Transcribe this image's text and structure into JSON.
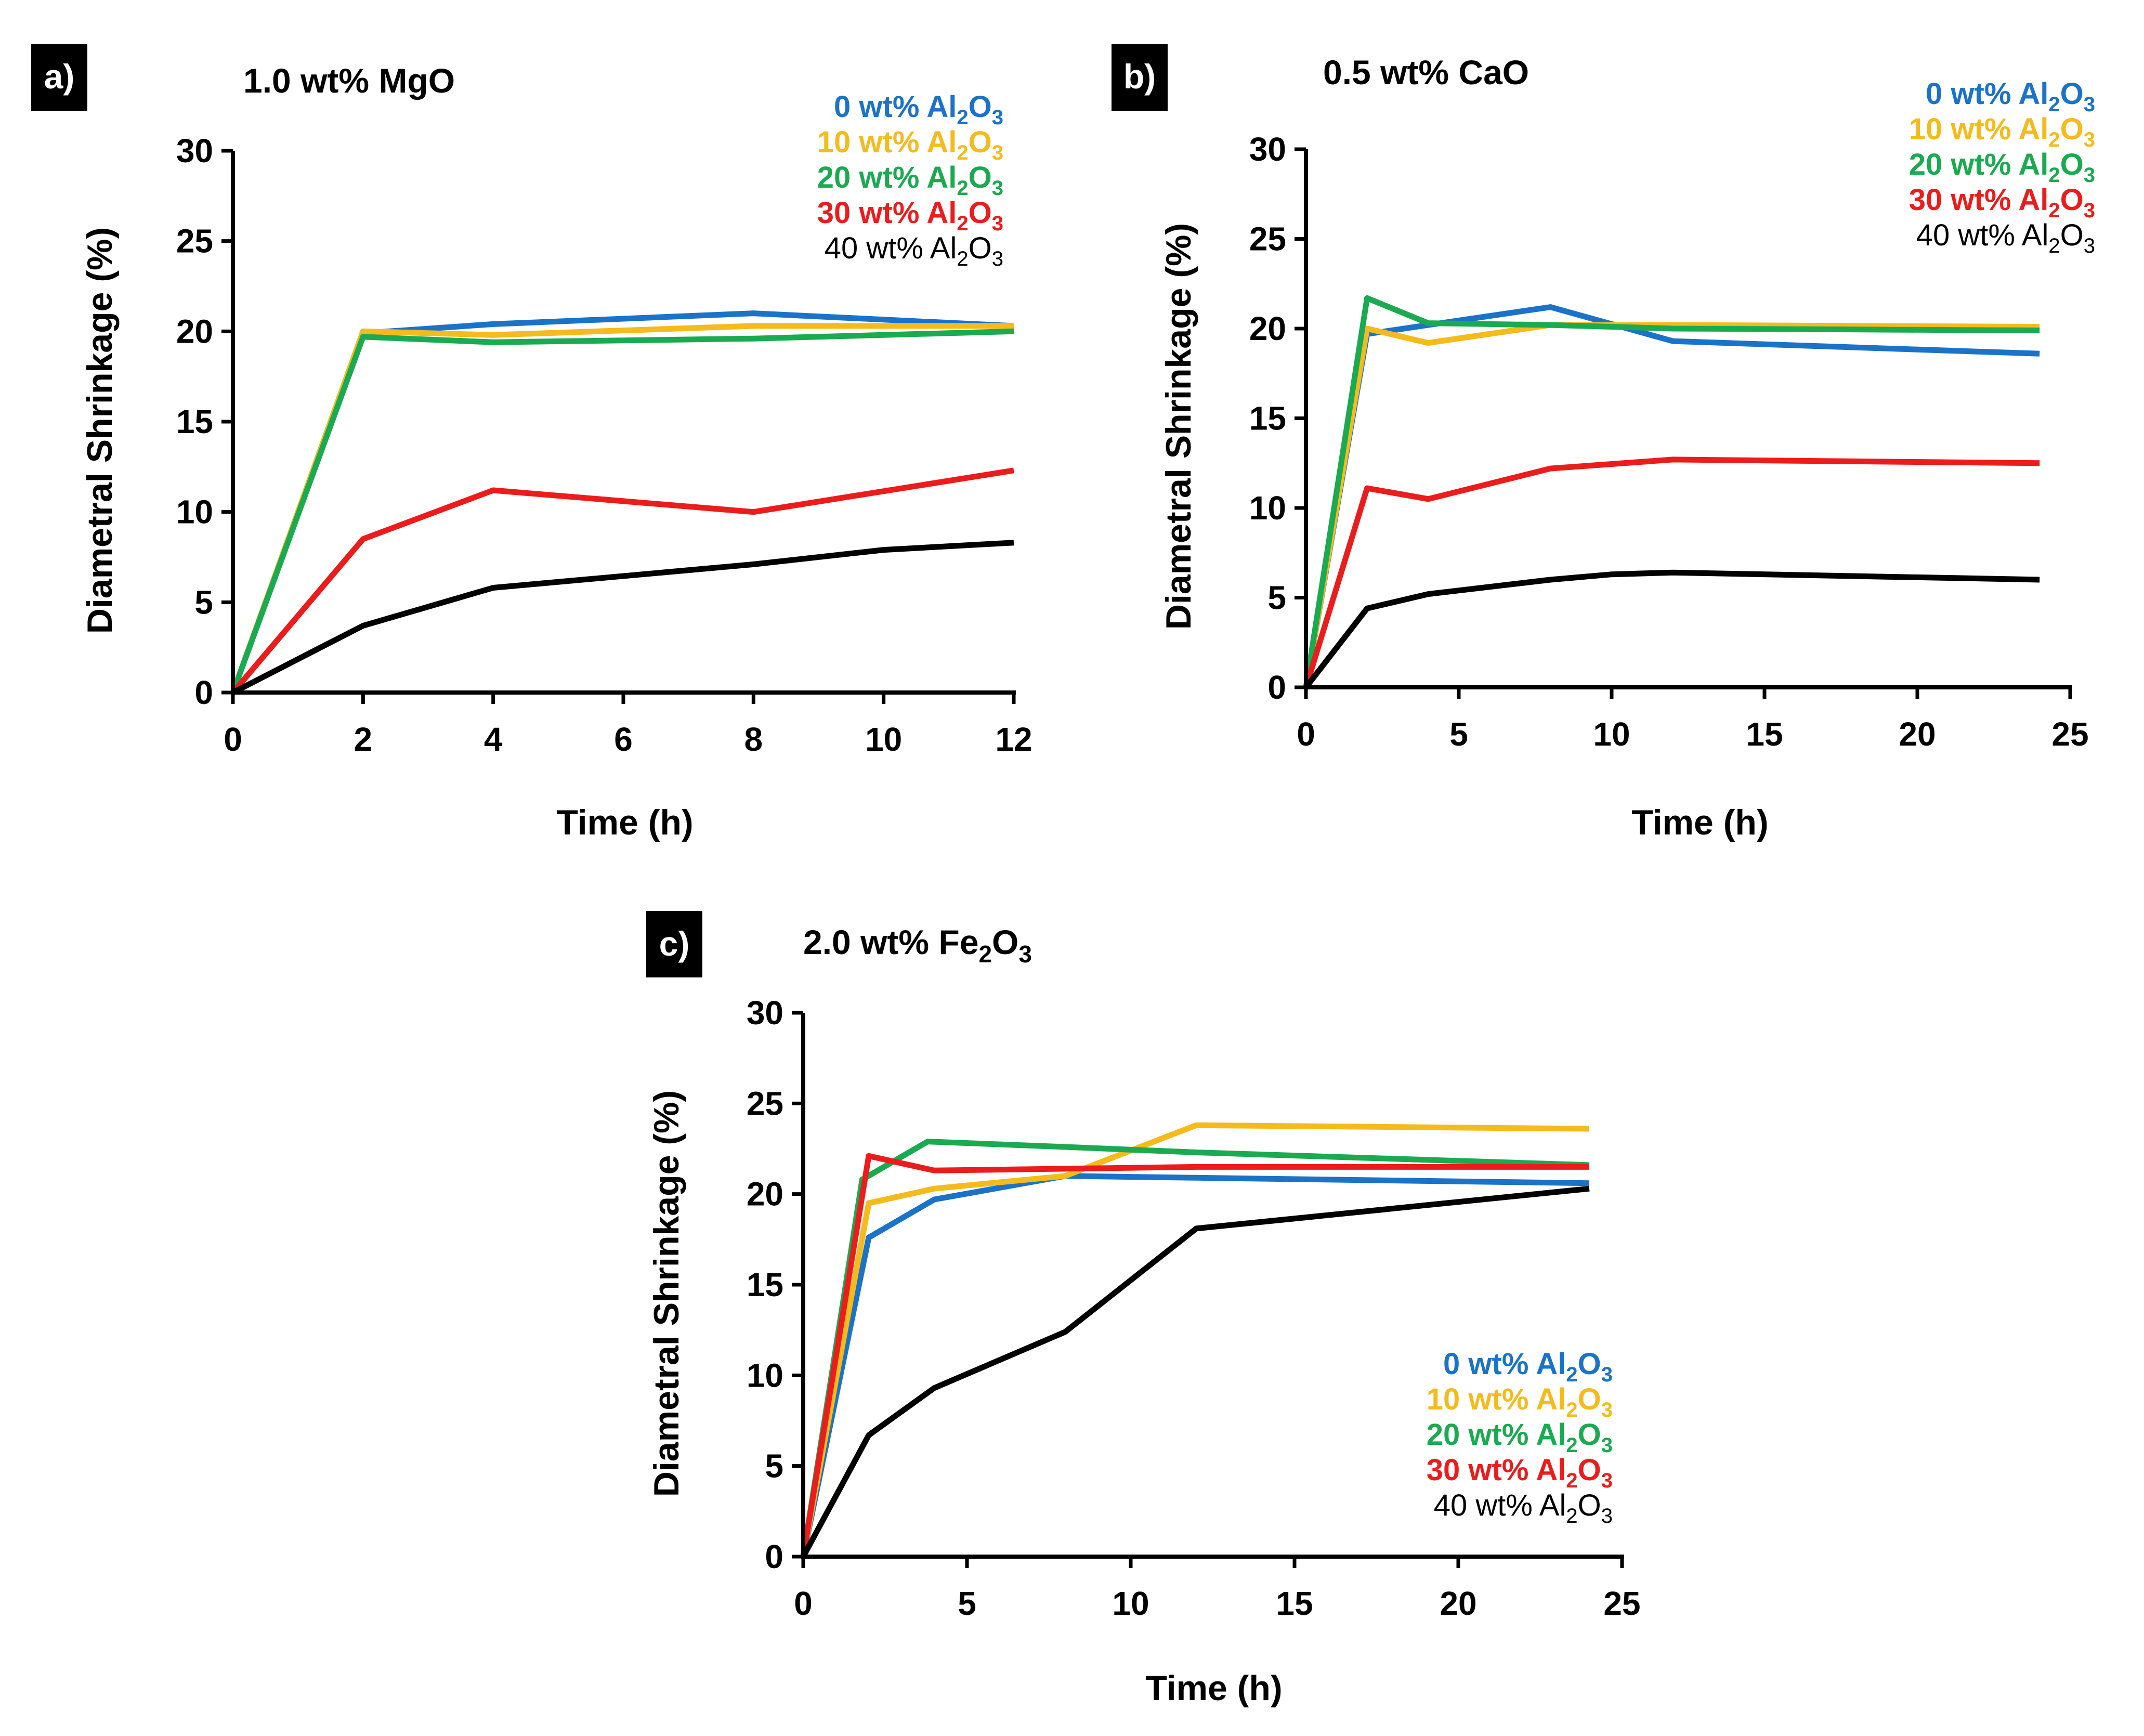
{
  "colors": {
    "s0": "#1a73c8",
    "s10": "#f5bb1d",
    "s20": "#1aaa50",
    "s30": "#ec1c1c",
    "s40": "#000000",
    "badge_bg": "#000000",
    "badge_text": "#ffffff",
    "axis": "#000000"
  },
  "chart_data": [
    {
      "panel_label": "a)",
      "title": "1.0 wt% MgO",
      "type": "line",
      "xlabel": "Time (h)",
      "ylabel": "Diametral Shrinkage (%)",
      "xlim": [
        0,
        12
      ],
      "ylim": [
        0,
        30
      ],
      "xticks": [
        0,
        2,
        4,
        6,
        8,
        10,
        12
      ],
      "yticks": [
        0,
        5,
        10,
        15,
        20,
        25,
        30
      ],
      "legend_position": "top-right",
      "series": [
        {
          "name": "0 wt% Al2O3",
          "legend_prefix": "0 wt% Al",
          "color_key": "s0",
          "x": [
            0,
            2,
            4,
            8,
            12
          ],
          "y": [
            0,
            19.9,
            20.4,
            21.0,
            20.3
          ]
        },
        {
          "name": "10 wt% Al2O3",
          "legend_prefix": "10 wt% Al",
          "color_key": "s10",
          "x": [
            0,
            2,
            4,
            8,
            12
          ],
          "y": [
            0,
            20.0,
            19.8,
            20.3,
            20.3
          ]
        },
        {
          "name": "20 wt% Al2O3",
          "legend_prefix": "20 wt% Al",
          "color_key": "s20",
          "x": [
            0,
            2,
            4,
            8,
            12
          ],
          "y": [
            0,
            19.7,
            19.4,
            19.6,
            20.0
          ]
        },
        {
          "name": "30 wt% Al2O3",
          "legend_prefix": "30 wt% Al",
          "color_key": "s30",
          "x": [
            0,
            2,
            4,
            8,
            12
          ],
          "y": [
            0,
            8.5,
            11.2,
            10.0,
            12.3
          ]
        },
        {
          "name": "40 wt% Al2O3",
          "legend_prefix": "40 wt% Al",
          "color_key": "s40",
          "x": [
            0,
            2,
            4,
            8,
            10,
            12
          ],
          "y": [
            0,
            3.7,
            5.8,
            7.1,
            7.9,
            8.3
          ]
        }
      ]
    },
    {
      "panel_label": "b)",
      "title": "0.5 wt% CaO",
      "type": "line",
      "xlabel": "Time (h)",
      "ylabel": "Diametral Shrinkage (%)",
      "xlim": [
        0,
        25
      ],
      "ylim": [
        0,
        30
      ],
      "xticks": [
        0,
        5,
        10,
        15,
        20,
        25
      ],
      "yticks": [
        0,
        5,
        10,
        15,
        20,
        25,
        30
      ],
      "legend_position": "top-right",
      "series": [
        {
          "name": "0 wt% Al2O3",
          "legend_prefix": "0 wt% Al",
          "color_key": "s0",
          "x": [
            0,
            2,
            4,
            8,
            12,
            24
          ],
          "y": [
            0,
            19.7,
            20.2,
            21.2,
            19.3,
            18.6
          ]
        },
        {
          "name": "10 wt% Al2O3",
          "legend_prefix": "10 wt% Al",
          "color_key": "s10",
          "x": [
            0,
            2,
            4,
            8,
            12,
            24
          ],
          "y": [
            0,
            20.0,
            19.2,
            20.2,
            20.2,
            20.1
          ]
        },
        {
          "name": "20 wt% Al2O3",
          "legend_prefix": "20 wt% Al",
          "color_key": "s20",
          "x": [
            0,
            2,
            4,
            8,
            12,
            24
          ],
          "y": [
            0,
            21.7,
            20.3,
            20.2,
            20.0,
            19.9
          ]
        },
        {
          "name": "30 wt% Al2O3",
          "legend_prefix": "30 wt% Al",
          "color_key": "s30",
          "x": [
            0,
            2,
            4,
            8,
            12,
            24
          ],
          "y": [
            0,
            11.1,
            10.5,
            12.2,
            12.7,
            12.5
          ]
        },
        {
          "name": "40 wt% Al2O3",
          "legend_prefix": "40 wt% Al",
          "color_key": "s40",
          "x": [
            0,
            2,
            4,
            8,
            10,
            12,
            24
          ],
          "y": [
            0,
            4.4,
            5.2,
            6.0,
            6.3,
            6.4,
            6.0
          ]
        }
      ]
    },
    {
      "panel_label": "c)",
      "title": "2.0 wt% Fe2O3",
      "title_prefix": "2.0 wt% Fe",
      "type": "line",
      "xlabel": "Time (h)",
      "ylabel": "Diametral Shrinkage (%)",
      "xlim": [
        0,
        25
      ],
      "ylim": [
        0,
        30
      ],
      "xticks": [
        0,
        5,
        10,
        15,
        20,
        25
      ],
      "yticks": [
        0,
        5,
        10,
        15,
        20,
        25,
        30
      ],
      "legend_position": "bottom-right",
      "series": [
        {
          "name": "0 wt% Al2O3",
          "legend_prefix": "0 wt% Al",
          "color_key": "s0",
          "x": [
            0,
            2,
            4,
            8,
            12,
            24
          ],
          "y": [
            0,
            17.6,
            19.7,
            21.0,
            20.9,
            20.6
          ]
        },
        {
          "name": "10 wt% Al2O3",
          "legend_prefix": "10 wt% Al",
          "color_key": "s10",
          "x": [
            0,
            2,
            4,
            8,
            12,
            24
          ],
          "y": [
            0,
            19.5,
            20.3,
            21.0,
            23.8,
            23.6
          ]
        },
        {
          "name": "20 wt% Al2O3",
          "legend_prefix": "20 wt% Al",
          "color_key": "s20",
          "x": [
            0,
            1.8,
            3.8,
            8,
            12,
            24
          ],
          "y": [
            0,
            20.8,
            22.9,
            22.6,
            22.3,
            21.6
          ]
        },
        {
          "name": "30 wt% Al2O3",
          "legend_prefix": "30 wt% Al",
          "color_key": "s30",
          "x": [
            0,
            2,
            4,
            8,
            12,
            24
          ],
          "y": [
            0,
            22.1,
            21.3,
            21.4,
            21.5,
            21.5
          ]
        },
        {
          "name": "40 wt% Al2O3",
          "legend_prefix": "40 wt% Al",
          "color_key": "s40",
          "x": [
            0,
            2,
            4,
            8,
            12,
            24
          ],
          "y": [
            0,
            6.7,
            9.3,
            12.4,
            18.1,
            20.3
          ]
        }
      ]
    }
  ]
}
